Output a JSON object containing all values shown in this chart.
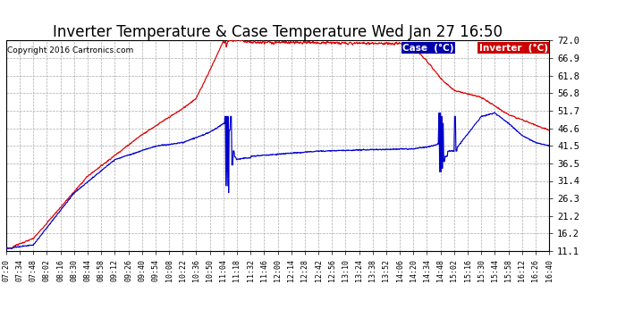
{
  "title": "Inverter Temperature & Case Temperature Wed Jan 27 16:50",
  "copyright": "Copyright 2016 Cartronics.com",
  "yticks": [
    11.1,
    16.2,
    21.2,
    26.3,
    31.4,
    36.5,
    41.5,
    46.6,
    51.7,
    56.8,
    61.8,
    66.9,
    72.0
  ],
  "xtick_labels": [
    "07:20",
    "07:34",
    "07:48",
    "08:02",
    "08:16",
    "08:30",
    "08:44",
    "08:58",
    "09:12",
    "09:26",
    "09:40",
    "09:54",
    "10:08",
    "10:22",
    "10:36",
    "10:50",
    "11:04",
    "11:18",
    "11:32",
    "11:46",
    "12:00",
    "12:14",
    "12:28",
    "12:42",
    "12:56",
    "13:10",
    "13:24",
    "13:38",
    "13:52",
    "14:06",
    "14:20",
    "14:34",
    "14:48",
    "15:02",
    "15:16",
    "15:30",
    "15:44",
    "15:58",
    "16:12",
    "16:26",
    "16:40"
  ],
  "ylim": [
    11.1,
    72.0
  ],
  "xlim": [
    0,
    40
  ],
  "bg_color": "#ffffff",
  "grid_color": "#aaaaaa",
  "inverter_color": "#dd0000",
  "case_color": "#0000cc",
  "title_fontsize": 12,
  "legend_case_bg": "#0000aa",
  "legend_inv_bg": "#cc0000",
  "figsize": [
    6.9,
    3.75
  ],
  "dpi": 100
}
